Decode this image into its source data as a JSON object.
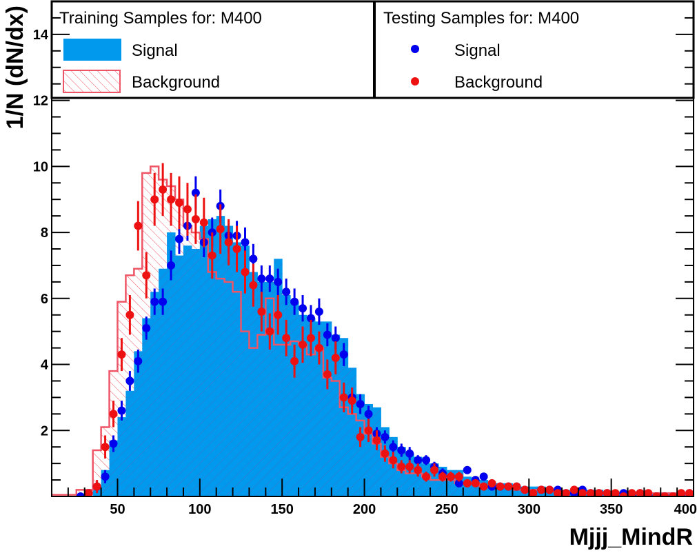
{
  "chart_data": {
    "type": "histogram",
    "xlabel": "Mjjj_MindR",
    "ylabel": "1/N (dN/dx)",
    "xlim": [
      10,
      400
    ],
    "ylim": [
      0,
      15
    ],
    "x_ticks": [
      50,
      100,
      150,
      200,
      250,
      300,
      350,
      400
    ],
    "y_ticks": [
      2,
      4,
      6,
      8,
      10,
      12,
      14
    ],
    "bin_width": 5,
    "legend": {
      "training_title": "Training Samples for: M400",
      "testing_title": "Testing Samples for: M400",
      "signal_label": "Signal",
      "background_label": "Background"
    },
    "colors": {
      "signal_fill": "#0099ee",
      "signal_hatch": "#3a78c8",
      "background_line": "#ee5566",
      "signal_points": "#0000ee",
      "background_points": "#ee1111"
    },
    "training_signal": {
      "bin_edges_start": 35,
      "values": [
        0.3,
        0.8,
        1.7,
        2.4,
        3.2,
        4.4,
        5.4,
        6.2,
        6.9,
        8.0,
        7.3,
        7.6,
        7.5,
        8.2,
        8.4,
        8.5,
        8.2,
        7.7,
        7.6,
        6.8,
        6.5,
        6.5,
        7.2,
        6.1,
        5.9,
        5.5,
        5.4,
        5.3,
        5.3,
        4.9,
        4.8,
        3.9,
        3.1,
        2.8,
        2.7,
        2.1,
        1.8,
        1.5,
        1.3,
        1.2,
        1.0,
        1.0,
        0.9,
        0.8,
        0.8,
        0.6,
        0.5,
        0.5,
        0.4,
        0.4,
        0.4,
        0.3,
        0.3,
        0.3,
        0.3,
        0.2,
        0.2,
        0.2,
        0.2,
        0.2,
        0.2,
        0.2,
        0.15,
        0.15,
        0.15,
        0.15,
        0.1,
        0.1,
        0.1,
        0.1,
        0.1,
        0.1,
        0.1
      ]
    },
    "training_background": {
      "bin_edges_start": 0,
      "values": [
        0.05,
        0.05,
        0.05,
        0.05,
        0.05,
        0.2,
        0.2,
        1.4,
        2.1,
        3.8,
        5.9,
        6.7,
        6.9,
        9.8,
        10.0,
        9.6,
        9.4,
        9.0,
        8.2,
        8.0,
        7.8,
        6.8,
        6.6,
        6.5,
        6.2,
        5.0,
        4.5,
        4.9,
        6.0,
        4.6,
        4.6,
        4.7,
        4.6,
        4.3,
        4.5,
        3.6,
        3.5,
        2.7,
        2.5,
        2.3,
        1.9,
        1.6,
        1.2,
        1.0,
        0.8,
        0.7,
        0.7,
        0.6,
        0.5,
        0.5,
        0.5,
        0.4,
        0.4,
        0.4,
        0.3,
        0.3,
        0.3,
        0.3,
        0.2,
        0.2,
        0.2,
        0.2,
        0.15,
        0.15,
        0.15,
        0.1,
        0.1,
        0.1,
        0.1,
        0.1,
        0.1,
        0.1,
        0.1,
        0.1,
        0.1,
        0.1,
        0.1,
        0.1,
        0.05,
        0.05
      ]
    },
    "testing_signal": {
      "x": [
        27.5,
        32.5,
        37.5,
        42.5,
        47.5,
        52.5,
        57.5,
        62.5,
        67.5,
        72.5,
        77.5,
        82.5,
        87.5,
        92.5,
        97.5,
        102.5,
        107.5,
        112.5,
        117.5,
        122.5,
        127.5,
        132.5,
        137.5,
        142.5,
        147.5,
        152.5,
        157.5,
        162.5,
        167.5,
        172.5,
        177.5,
        182.5,
        187.5,
        192.5,
        197.5,
        202.5,
        207.5,
        212.5,
        217.5,
        222.5,
        227.5,
        232.5,
        237.5,
        242.5,
        247.5,
        252.5,
        257.5,
        262.5,
        267.5,
        272.5,
        277.5,
        282.5,
        287.5,
        292.5,
        297.5,
        302.5,
        307.5,
        312.5,
        317.5,
        322.5,
        327.5,
        332.5,
        337.5,
        342.5,
        347.5,
        352.5,
        357.5,
        362.5,
        367.5,
        372.5,
        377.5,
        382.5,
        387.5,
        392.5,
        397.5
      ],
      "y": [
        0.0,
        0.1,
        0.3,
        0.6,
        1.6,
        2.6,
        3.5,
        4.1,
        5.1,
        5.9,
        5.9,
        7.0,
        7.8,
        8.2,
        9.2,
        7.7,
        8.0,
        8.8,
        7.9,
        7.9,
        7.7,
        7.2,
        6.6,
        6.6,
        6.5,
        6.2,
        5.9,
        5.7,
        5.4,
        5.6,
        4.9,
        4.8,
        4.3,
        3.0,
        2.8,
        2.5,
        1.9,
        1.8,
        1.5,
        1.4,
        1.3,
        1.1,
        1.1,
        0.9,
        0.7,
        0.6,
        0.4,
        0.8,
        0.5,
        0.6,
        0.3,
        0.3,
        0.3,
        0.3,
        0.2,
        0.1,
        0.2,
        0.2,
        0.2,
        0.1,
        0.1,
        0.2,
        0.1,
        0.1,
        0.1,
        0.0,
        0.1,
        0.0,
        0.1,
        0.0,
        0.0,
        0.0,
        0.0,
        0.0,
        0.1
      ],
      "err": [
        0.05,
        0.1,
        0.15,
        0.2,
        0.25,
        0.3,
        0.3,
        0.35,
        0.35,
        0.4,
        0.4,
        0.45,
        0.45,
        0.45,
        0.5,
        0.45,
        0.45,
        0.5,
        0.45,
        0.45,
        0.45,
        0.45,
        0.4,
        0.4,
        0.4,
        0.4,
        0.4,
        0.4,
        0.4,
        0.4,
        0.35,
        0.35,
        0.35,
        0.3,
        0.3,
        0.25,
        0.2,
        0.2,
        0.2,
        0.2,
        0.2,
        0.15,
        0.15,
        0.15,
        0.15,
        0.1,
        0.1,
        0.1,
        0.1,
        0.1,
        0.1,
        0.1,
        0.1,
        0.1,
        0.1,
        0.1,
        0.1,
        0.1,
        0.1,
        0.1,
        0.1,
        0.1,
        0.1,
        0.1,
        0.1,
        0.1,
        0.1,
        0.1,
        0.1,
        0.1,
        0.1,
        0.1,
        0.1,
        0.1,
        0.1
      ]
    },
    "testing_background": {
      "x": [
        32.5,
        37.5,
        42.5,
        47.5,
        52.5,
        57.5,
        62.5,
        67.5,
        72.5,
        77.5,
        82.5,
        87.5,
        92.5,
        97.5,
        102.5,
        107.5,
        112.5,
        117.5,
        122.5,
        127.5,
        132.5,
        137.5,
        142.5,
        147.5,
        152.5,
        157.5,
        162.5,
        167.5,
        172.5,
        177.5,
        182.5,
        187.5,
        192.5,
        197.5,
        202.5,
        207.5,
        212.5,
        217.5,
        222.5,
        227.5,
        232.5,
        237.5,
        242.5,
        247.5,
        252.5,
        257.5,
        262.5,
        267.5,
        272.5,
        277.5,
        282.5,
        287.5,
        292.5,
        297.5,
        302.5,
        307.5,
        312.5,
        317.5,
        322.5,
        327.5,
        332.5,
        337.5,
        342.5,
        347.5,
        352.5,
        357.5,
        362.5,
        367.5,
        372.5,
        377.5,
        382.5,
        387.5,
        392.5,
        397.5
      ],
      "y": [
        0.1,
        0.3,
        1.5,
        2.5,
        4.3,
        5.5,
        8.2,
        6.7,
        9.0,
        9.3,
        9.0,
        8.9,
        8.7,
        8.4,
        8.3,
        7.3,
        8.1,
        7.7,
        7.5,
        6.8,
        6.4,
        5.6,
        5.0,
        5.5,
        4.8,
        4.1,
        4.6,
        4.8,
        4.5,
        3.7,
        4.2,
        3.0,
        2.9,
        1.8,
        2.0,
        1.7,
        1.3,
        1.1,
        0.9,
        0.9,
        0.8,
        0.6,
        0.8,
        0.6,
        0.6,
        0.6,
        0.4,
        0.4,
        0.3,
        0.4,
        0.3,
        0.3,
        0.3,
        0.2,
        0.1,
        0.2,
        0.2,
        0.1,
        0.1,
        0.2,
        0.1,
        0.1,
        0.1,
        0.1,
        0.1,
        0.0,
        0.1,
        0.1,
        0.1,
        0.0,
        0.0,
        0.0,
        0.1,
        0.1
      ],
      "err": [
        0.1,
        0.2,
        0.35,
        0.4,
        0.5,
        0.6,
        0.75,
        0.7,
        0.8,
        0.8,
        0.8,
        0.8,
        0.8,
        0.75,
        0.75,
        0.7,
        0.75,
        0.7,
        0.7,
        0.65,
        0.65,
        0.6,
        0.55,
        0.6,
        0.55,
        0.5,
        0.55,
        0.55,
        0.5,
        0.45,
        0.5,
        0.45,
        0.4,
        0.3,
        0.35,
        0.3,
        0.25,
        0.25,
        0.2,
        0.2,
        0.2,
        0.15,
        0.2,
        0.15,
        0.15,
        0.15,
        0.1,
        0.1,
        0.1,
        0.1,
        0.1,
        0.1,
        0.1,
        0.1,
        0.1,
        0.1,
        0.1,
        0.1,
        0.1,
        0.1,
        0.1,
        0.1,
        0.1,
        0.1,
        0.1,
        0.1,
        0.1,
        0.1,
        0.1,
        0.1,
        0.1,
        0.1,
        0.1,
        0.1
      ]
    }
  }
}
